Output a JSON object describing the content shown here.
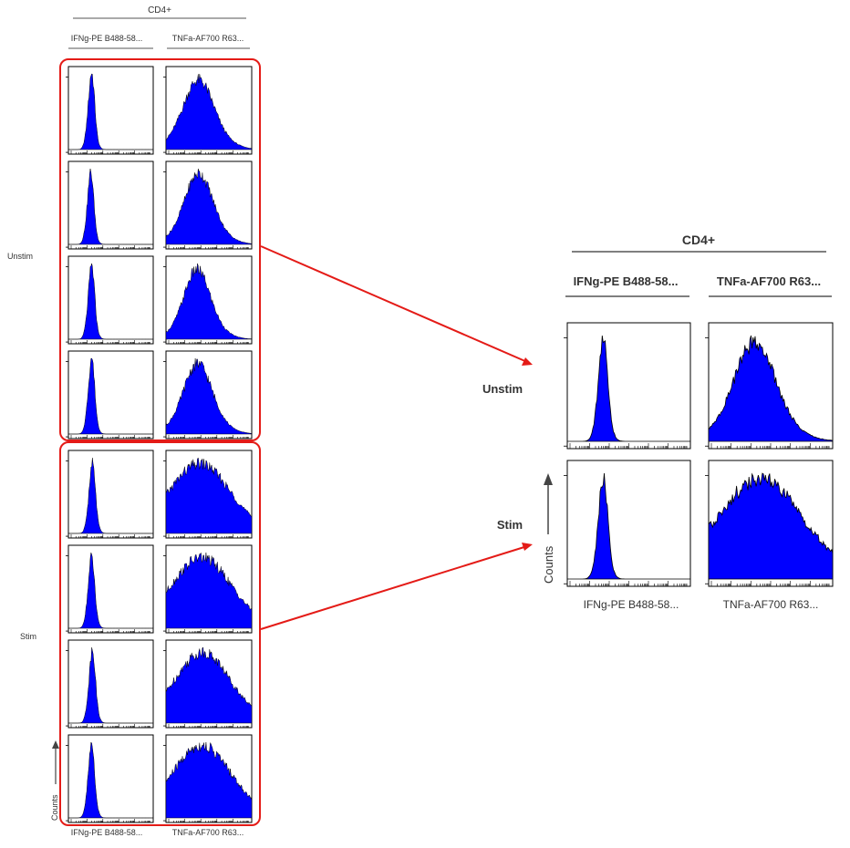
{
  "panel_header": "CD4+",
  "columns": [
    "IFNg-PE B488-58...",
    "TNFa-AF700 R63..."
  ],
  "rows": [
    "Unstim",
    "Stim"
  ],
  "y_axis_label": "Counts",
  "colors": {
    "fill": "#0000ff",
    "stroke": "#000000",
    "highlight_box": "#e41b17",
    "arrow": "#e41b17",
    "text": "#333333"
  },
  "chart_data": [
    {
      "type": "histogram-grid",
      "title": "CD4+",
      "columns": [
        "IFNg-PE B488-58...",
        "TNFa-AF700 R63..."
      ],
      "rows": [
        "Unstim",
        "Stim"
      ],
      "replicates_per_row": 4,
      "ylabel": "Counts",
      "xlabel": [
        "IFNg-PE B488-58...",
        "TNFa-AF700 R63..."
      ],
      "histograms": {
        "Unstim": {
          "IFNg-PE B488-58...": [
            [
              0.28,
              0.3,
              0.03
            ],
            [
              0.27,
              0.3,
              0.03
            ],
            [
              0.28,
              0.3,
              0.03
            ],
            [
              0.28,
              0.3,
              0.03
            ]
          ],
          "TNFa-AF700 R63...": [
            [
              0.38,
              0.08,
              0.16
            ],
            [
              0.38,
              0.07,
              0.15
            ],
            [
              0.36,
              0.06,
              0.14
            ],
            [
              0.37,
              0.07,
              0.15
            ]
          ]
        },
        "Stim": {
          "IFNg-PE B488-58...": [
            [
              0.29,
              0.33,
              0.03
            ],
            [
              0.28,
              0.32,
              0.03
            ],
            [
              0.29,
              0.33,
              0.03
            ],
            [
              0.28,
              0.32,
              0.03
            ]
          ],
          "TNFa-AF700 R63...": [
            [
              0.42,
              0.16,
              0.3
            ],
            [
              0.43,
              0.13,
              0.3
            ],
            [
              0.44,
              0.12,
              0.28
            ],
            [
              0.43,
              0.12,
              0.3
            ]
          ]
        }
      }
    },
    {
      "type": "histogram-grid",
      "title": "CD4+",
      "columns": [
        "IFNg-PE B488-58...",
        "TNFa-AF700 R63..."
      ],
      "rows": [
        "Unstim",
        "Stim"
      ],
      "ylabel": "Counts",
      "xlabel": [
        "IFNg-PE B488-58...",
        "TNFa-AF700 R63..."
      ],
      "histograms": {
        "Unstim": {
          "IFNg-PE B488-58...": [
            0.3,
            0.32,
            0.03
          ],
          "TNFa-AF700 R63...": [
            0.37,
            0.07,
            0.15
          ]
        },
        "Stim": {
          "IFNg-PE B488-58...": [
            0.3,
            0.33,
            0.03
          ],
          "TNFa-AF700 R63...": [
            0.43,
            0.13,
            0.3
          ]
        }
      }
    }
  ]
}
